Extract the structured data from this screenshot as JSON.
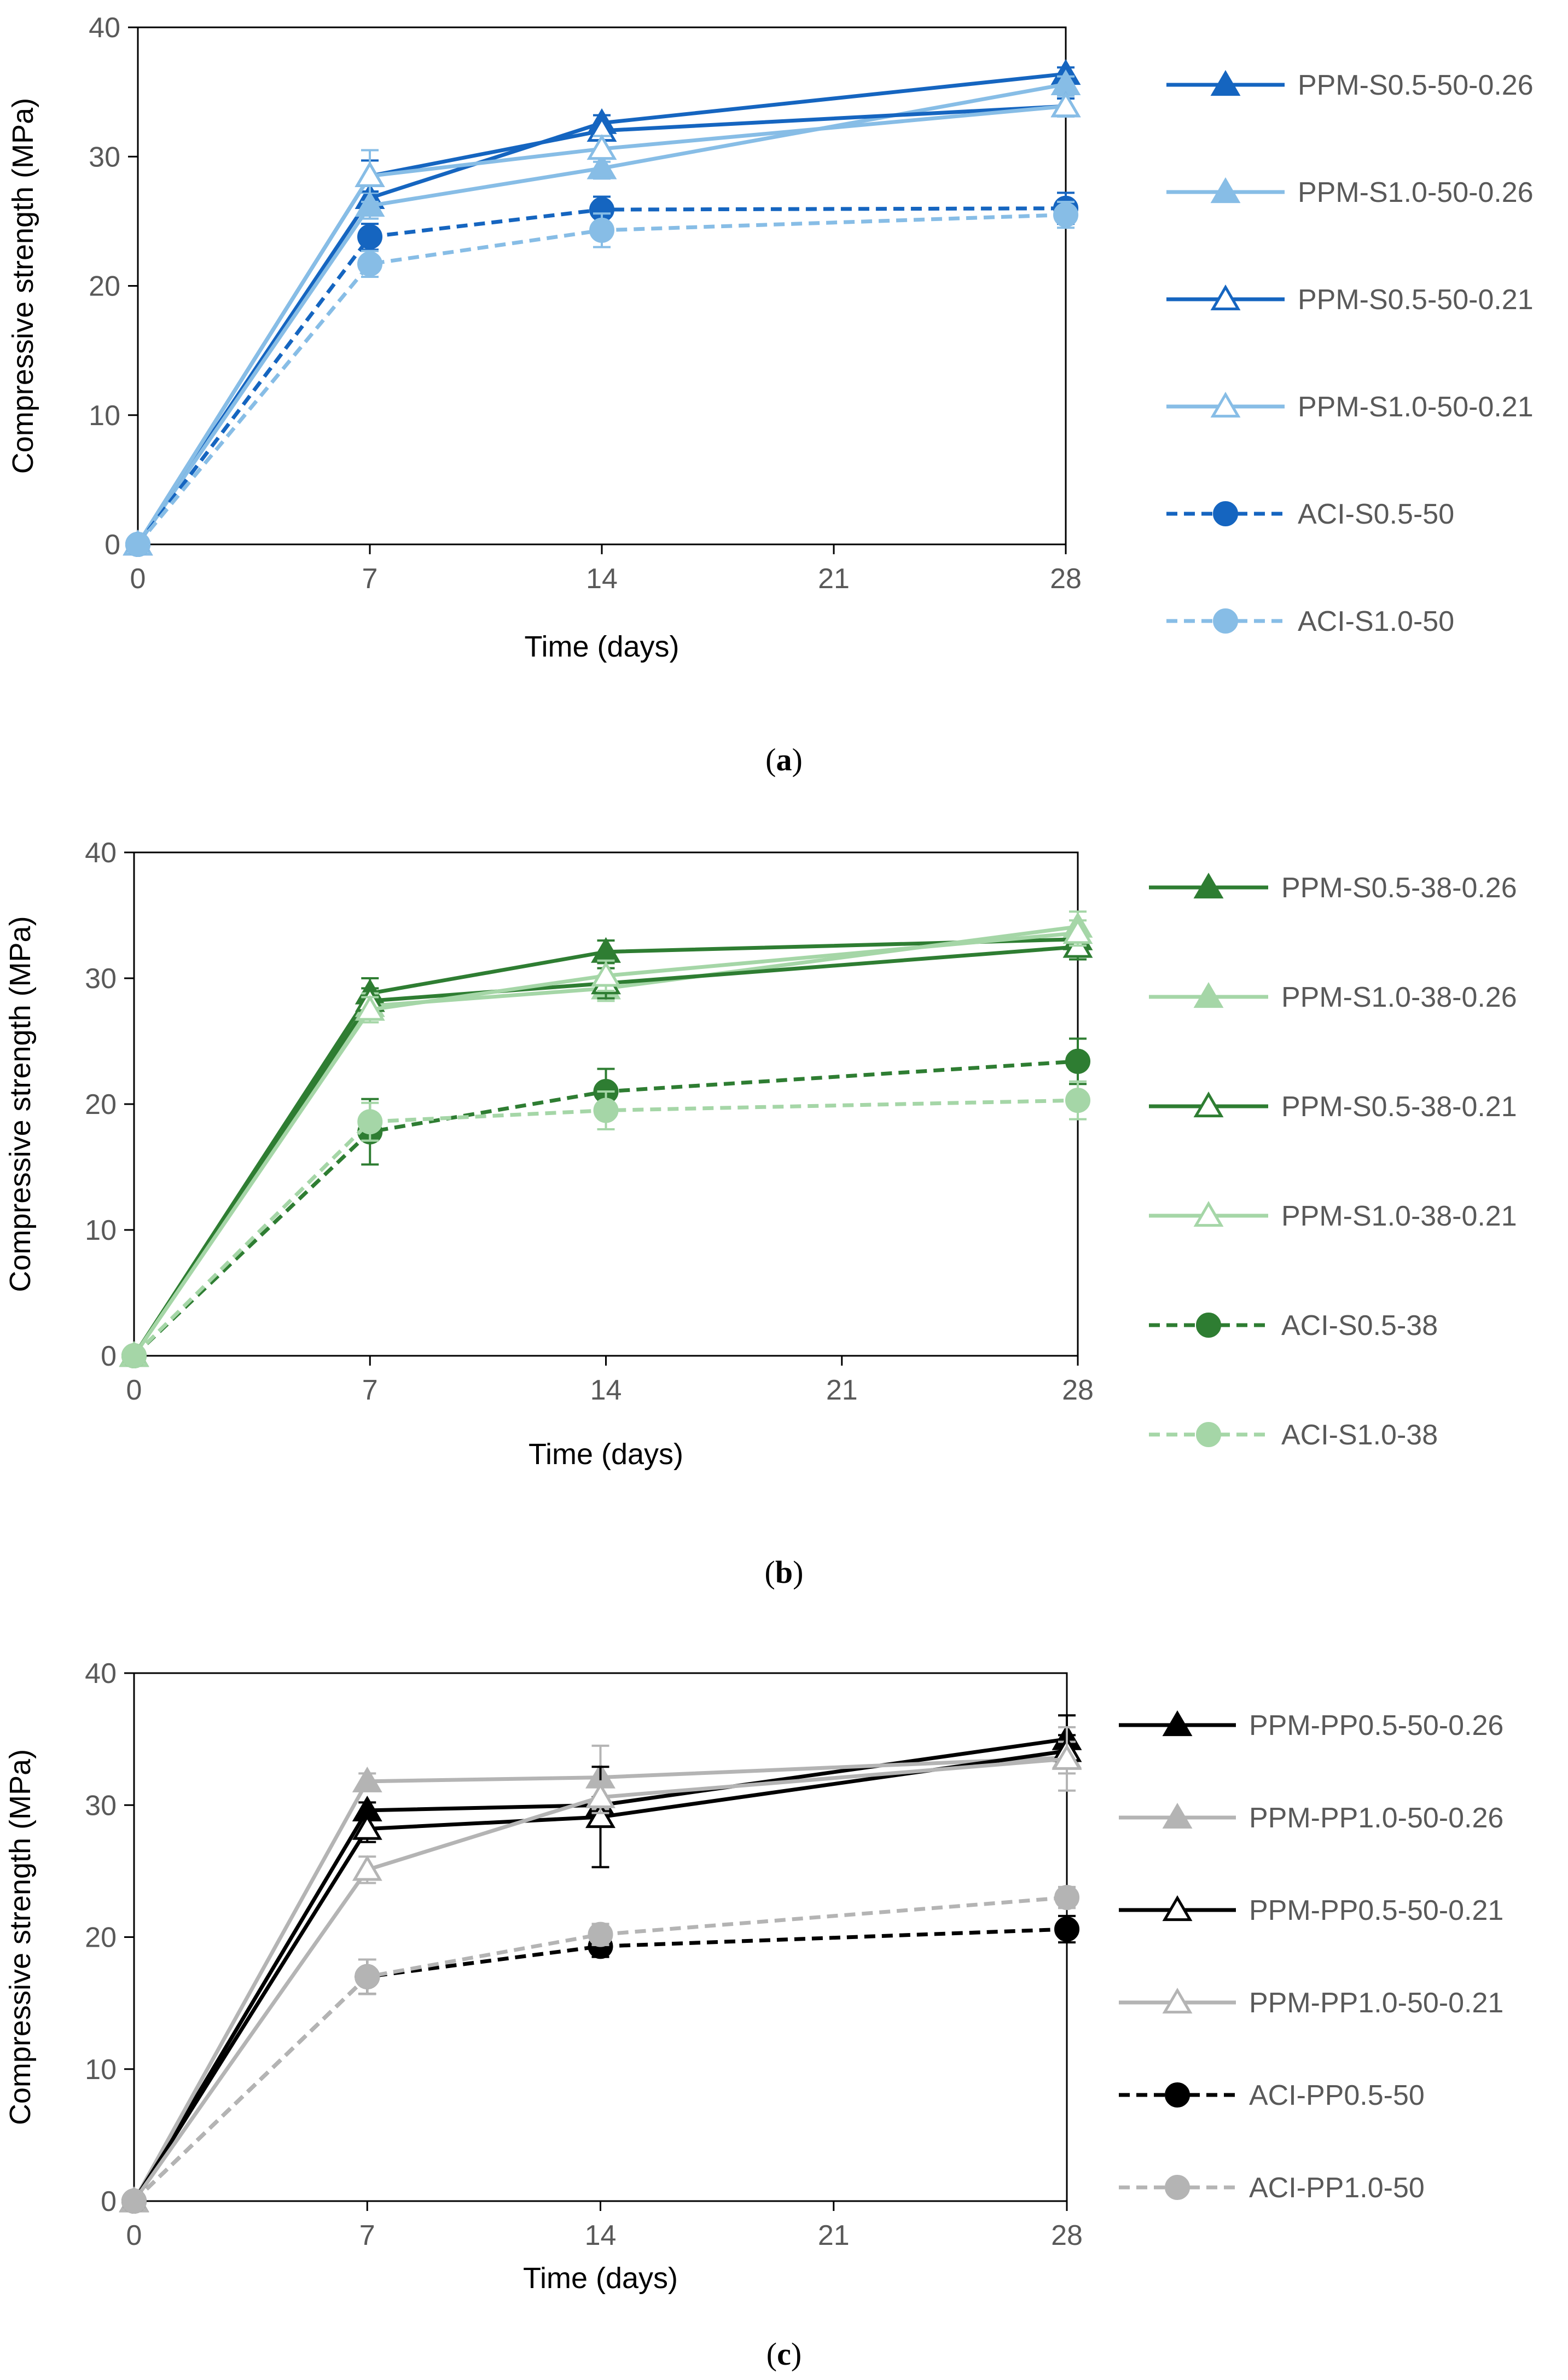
{
  "chart_data": [
    {
      "type": "line",
      "panel": "a",
      "caption": {
        "open": "(",
        "label": "a",
        "close": ")"
      },
      "xlabel": "Time (days)",
      "ylabel": "Compressive strength (MPa)",
      "xlim": [
        0,
        28
      ],
      "ylim": [
        0,
        40
      ],
      "xticks": [
        0,
        7,
        14,
        21,
        28
      ],
      "yticks": [
        0,
        10,
        20,
        30,
        40
      ],
      "title_color": "#000000",
      "series": [
        {
          "name": "PPM-S0.5-50-0.26",
          "color": "#1565c0",
          "dash": false,
          "marker": "triangle-filled",
          "x": [
            0,
            7,
            14,
            28
          ],
          "y": [
            0,
            26.8,
            32.6,
            36.4
          ],
          "err": [
            0,
            1.0,
            0.6,
            0.5
          ]
        },
        {
          "name": "PPM-S1.0-50-0.26",
          "color": "#87bde6",
          "dash": false,
          "marker": "triangle-filled",
          "x": [
            0,
            7,
            14,
            28
          ],
          "y": [
            0,
            26.2,
            29.1,
            35.6
          ],
          "err": [
            0,
            1.0,
            0.8,
            0.6
          ]
        },
        {
          "name": "PPM-S0.5-50-0.21",
          "color": "#1565c0",
          "dash": false,
          "marker": "triangle-open",
          "x": [
            0,
            7,
            14,
            28
          ],
          "y": [
            0,
            28.5,
            32.0,
            33.9
          ],
          "err": [
            0,
            1.2,
            0.5,
            0.6
          ]
        },
        {
          "name": "PPM-S1.0-50-0.21",
          "color": "#87bde6",
          "dash": false,
          "marker": "triangle-open",
          "x": [
            0,
            7,
            14,
            28
          ],
          "y": [
            0,
            28.5,
            30.6,
            33.9
          ],
          "err": [
            0,
            2.0,
            1.0,
            0.8
          ]
        },
        {
          "name": "ACI-S0.5-50",
          "color": "#1565c0",
          "dash": true,
          "marker": "circle",
          "x": [
            0,
            7,
            14,
            28
          ],
          "y": [
            0,
            23.8,
            25.9,
            26.0
          ],
          "err": [
            0,
            1.0,
            1.0,
            1.2
          ]
        },
        {
          "name": "ACI-S1.0-50",
          "color": "#87bde6",
          "dash": true,
          "marker": "circle",
          "x": [
            0,
            7,
            14,
            28
          ],
          "y": [
            0,
            21.7,
            24.3,
            25.5
          ],
          "err": [
            0,
            1.0,
            1.3,
            1.0
          ]
        }
      ]
    },
    {
      "type": "line",
      "panel": "b",
      "caption": {
        "open": "(",
        "label": "b",
        "close": ")"
      },
      "xlabel": "Time (days)",
      "ylabel": "Compressive strength (MPa)",
      "xlim": [
        0,
        28
      ],
      "ylim": [
        0,
        40
      ],
      "xticks": [
        0,
        7,
        14,
        21,
        28
      ],
      "yticks": [
        0,
        10,
        20,
        30,
        40
      ],
      "title_color": "#595959",
      "series": [
        {
          "name": "PPM-S0.5-38-0.26",
          "color": "#2e7d32",
          "dash": false,
          "marker": "triangle-filled",
          "x": [
            0,
            7,
            14,
            28
          ],
          "y": [
            0,
            28.8,
            32.1,
            33.1
          ],
          "err": [
            0,
            1.2,
            0.9,
            0.8
          ]
        },
        {
          "name": "PPM-S1.0-38-0.26",
          "color": "#a5d6a7",
          "dash": false,
          "marker": "triangle-filled",
          "x": [
            0,
            7,
            14,
            28
          ],
          "y": [
            0,
            27.8,
            29.2,
            34.1
          ],
          "err": [
            0,
            1.0,
            1.0,
            1.2
          ]
        },
        {
          "name": "PPM-S0.5-38-0.21",
          "color": "#2e7d32",
          "dash": false,
          "marker": "triangle-open",
          "x": [
            0,
            7,
            14,
            28
          ],
          "y": [
            0,
            28.2,
            29.6,
            32.5
          ],
          "err": [
            0,
            1.0,
            1.2,
            1.0
          ]
        },
        {
          "name": "PPM-S1.0-38-0.21",
          "color": "#a5d6a7",
          "dash": false,
          "marker": "triangle-open",
          "x": [
            0,
            7,
            14,
            28
          ],
          "y": [
            0,
            27.5,
            30.2,
            33.6
          ],
          "err": [
            0,
            1.0,
            1.2,
            1.0
          ]
        },
        {
          "name": "ACI-S0.5-38",
          "color": "#2e7d32",
          "dash": true,
          "marker": "circle",
          "x": [
            0,
            7,
            14,
            28
          ],
          "y": [
            0,
            17.8,
            21.0,
            23.4
          ],
          "err": [
            0,
            2.6,
            1.8,
            1.8
          ]
        },
        {
          "name": "ACI-S1.0-38",
          "color": "#a5d6a7",
          "dash": true,
          "marker": "circle",
          "x": [
            0,
            7,
            14,
            28
          ],
          "y": [
            0,
            18.6,
            19.5,
            20.3
          ],
          "err": [
            0,
            1.5,
            1.5,
            1.5
          ]
        }
      ]
    },
    {
      "type": "line",
      "panel": "c",
      "caption": {
        "open": "(",
        "label": "c",
        "close": ")"
      },
      "xlabel": "Time (days)",
      "ylabel": "Compressive strength (MPa)",
      "xlim": [
        0,
        28
      ],
      "ylim": [
        0,
        40
      ],
      "xticks": [
        0,
        7,
        14,
        21,
        28
      ],
      "yticks": [
        0,
        10,
        20,
        30,
        40
      ],
      "title_color": "#595959",
      "series": [
        {
          "name": "PPM-PP0.5-50-0.26",
          "color": "#000000",
          "dash": false,
          "marker": "triangle-filled",
          "x": [
            0,
            7,
            14,
            28
          ],
          "y": [
            0,
            29.6,
            30.0,
            35.0
          ],
          "err": [
            0,
            0.6,
            0.6,
            1.8
          ]
        },
        {
          "name": "PPM-PP1.0-50-0.26",
          "color": "#b4b4b4",
          "dash": false,
          "marker": "triangle-filled",
          "x": [
            0,
            7,
            14,
            28
          ],
          "y": [
            0,
            31.8,
            32.1,
            33.6
          ],
          "err": [
            0,
            0.6,
            2.4,
            1.2
          ]
        },
        {
          "name": "PPM-PP0.5-50-0.21",
          "color": "#000000",
          "dash": false,
          "marker": "triangle-open",
          "x": [
            0,
            7,
            14,
            28
          ],
          "y": [
            0,
            28.2,
            29.1,
            34.1
          ],
          "err": [
            0,
            1.0,
            3.8,
            1.2
          ]
        },
        {
          "name": "PPM-PP1.0-50-0.21",
          "color": "#b4b4b4",
          "dash": false,
          "marker": "triangle-open",
          "x": [
            0,
            7,
            14,
            28
          ],
          "y": [
            0,
            25.1,
            30.6,
            33.5
          ],
          "err": [
            0,
            1.0,
            1.2,
            2.4
          ]
        },
        {
          "name": "ACI-PP0.5-50",
          "color": "#000000",
          "dash": true,
          "marker": "circle",
          "x": [
            0,
            7,
            14,
            28
          ],
          "y": [
            0,
            17.0,
            19.3,
            20.6
          ],
          "err": [
            0,
            1.3,
            0.8,
            1.0
          ]
        },
        {
          "name": "ACI-PP1.0-50",
          "color": "#b4b4b4",
          "dash": true,
          "marker": "circle",
          "x": [
            0,
            7,
            14,
            28
          ],
          "y": [
            0,
            17.0,
            20.2,
            23.0
          ],
          "err": [
            0,
            1.3,
            0.8,
            0.8
          ]
        }
      ]
    }
  ]
}
